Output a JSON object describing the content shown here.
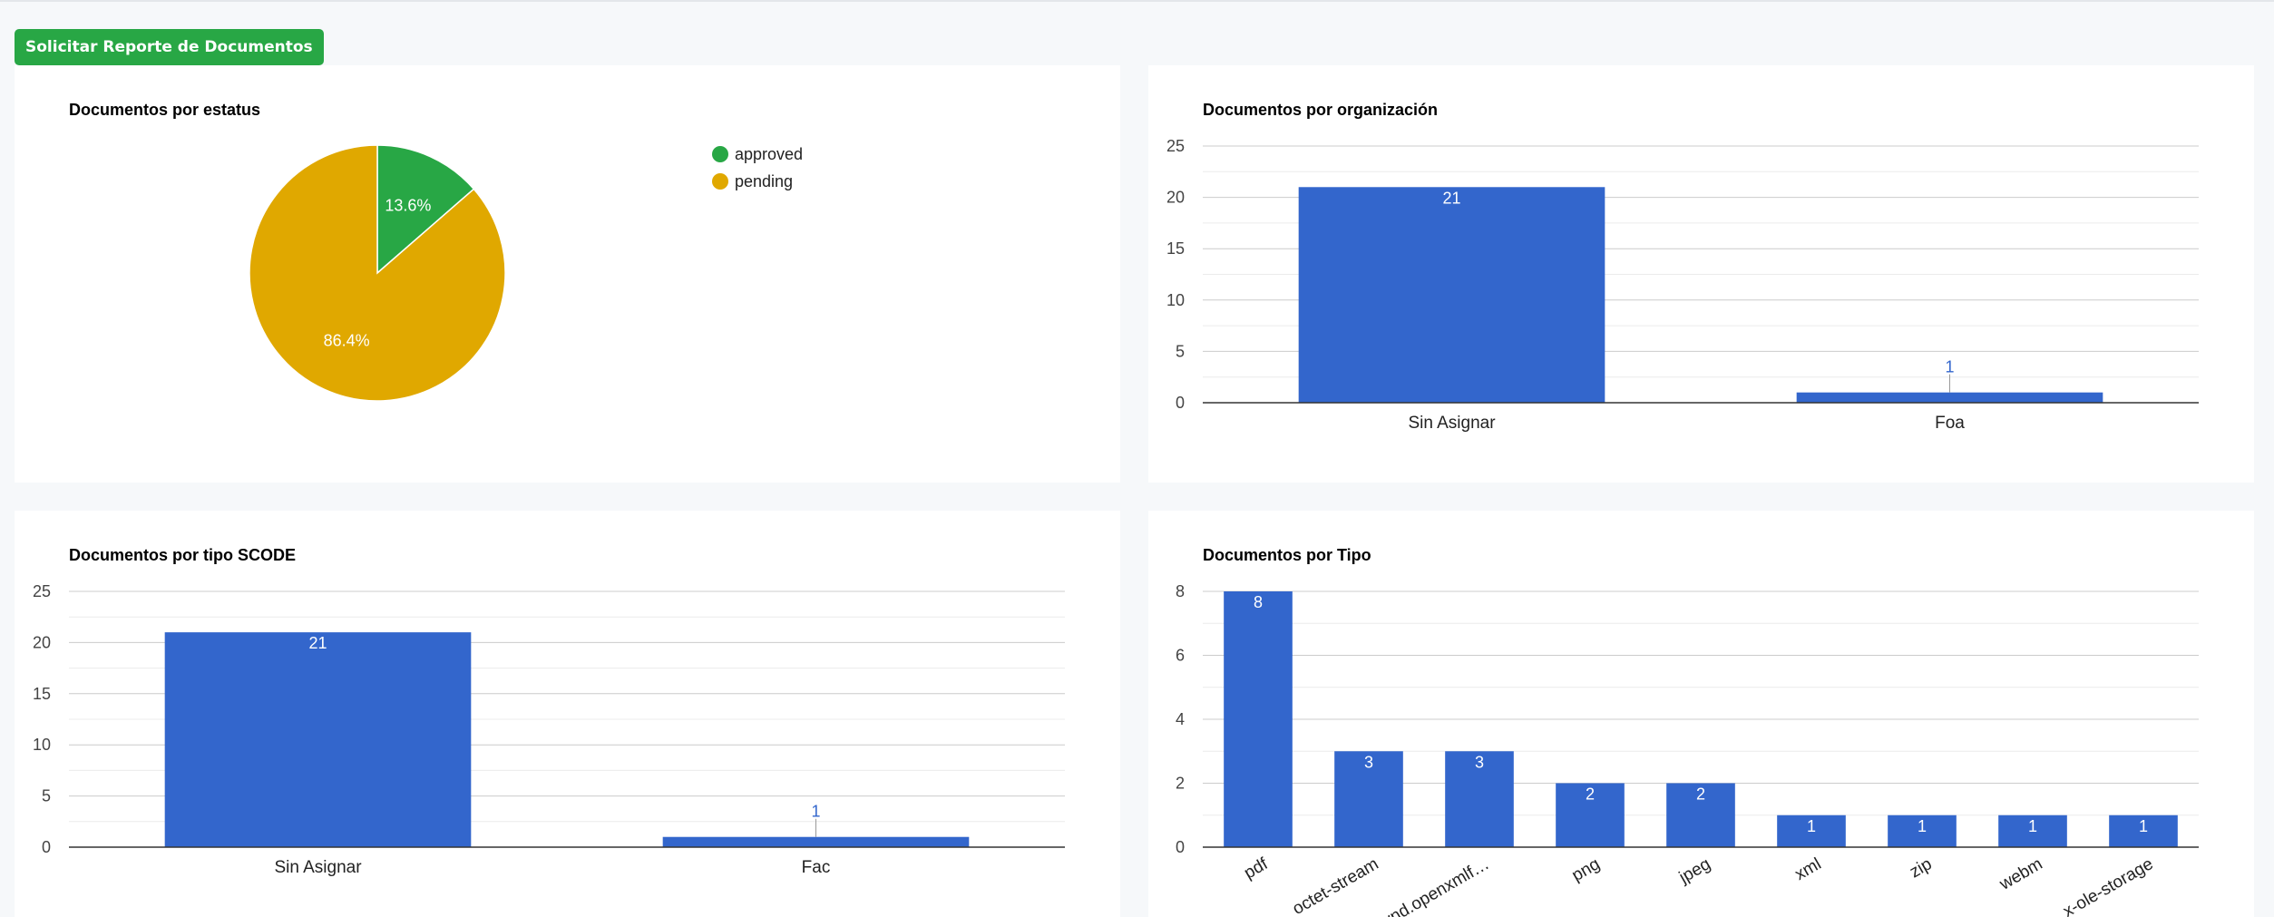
{
  "toolbar": {
    "report_button_label": "Solicitar Reporte de Documentos"
  },
  "colors": {
    "bar": "#3366cc",
    "approved": "#28a745",
    "pending": "#e0a800",
    "grid": "#cccccc"
  },
  "chart_data": [
    {
      "type": "pie",
      "title": "Documentos por estatus",
      "slices": [
        {
          "label": "approved",
          "percent": 13.6,
          "display": "13.6%"
        },
        {
          "label": "pending",
          "percent": 86.4,
          "display": "86.4%"
        }
      ],
      "legend": [
        "approved",
        "pending"
      ],
      "legend_position": "right"
    },
    {
      "type": "bar",
      "title": "Documentos por organización",
      "categories": [
        "Sin Asignar",
        "Foa"
      ],
      "values": [
        21,
        1
      ],
      "ylim": [
        0,
        25
      ],
      "yticks": [
        0,
        5,
        10,
        15,
        20,
        25
      ],
      "grid": true
    },
    {
      "type": "bar",
      "title": "Documentos por tipo SCODE",
      "categories": [
        "Sin Asignar",
        "Fac"
      ],
      "values": [
        21,
        1
      ],
      "ylim": [
        0,
        25
      ],
      "yticks": [
        0,
        5,
        10,
        15,
        20,
        25
      ],
      "grid": true
    },
    {
      "type": "bar",
      "title": "Documentos por Tipo",
      "categories": [
        "pdf",
        "octet-stream",
        "vnd.openxmlf…",
        "png",
        "jpeg",
        "xml",
        "zip",
        "webm",
        "x-ole-storage"
      ],
      "values": [
        8,
        3,
        3,
        2,
        2,
        1,
        1,
        1,
        1
      ],
      "ylim": [
        0,
        8
      ],
      "yticks": [
        0,
        2,
        4,
        6,
        8
      ],
      "grid": true,
      "rotated_labels": true
    }
  ]
}
